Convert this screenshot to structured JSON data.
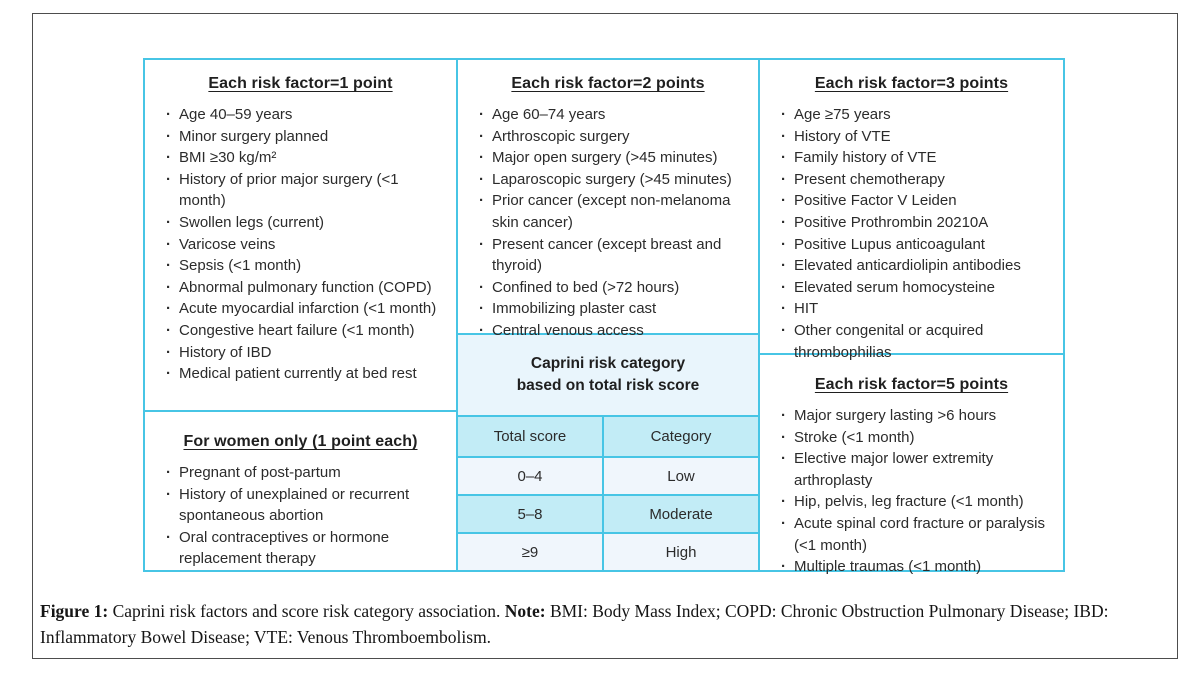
{
  "bullet": "·",
  "panel": {
    "one_point": {
      "title": "Each risk factor=1 point",
      "items": [
        "Age 40–59 years",
        "Minor surgery planned",
        "BMI ≥30 kg/m²",
        "History of prior major surgery (<1 month)",
        "Swollen legs (current)",
        "Varicose veins",
        "Sepsis (<1 month)",
        "Abnormal pulmonary function (COPD)",
        "Acute myocardial infarction (<1 month)",
        "Congestive heart failure (<1 month)",
        "History of IBD",
        "Medical patient currently at bed rest"
      ]
    },
    "women": {
      "title": "For women only (1 point each)",
      "items": [
        "Pregnant of post-partum",
        "History of unexplained or recurrent spontaneous abortion",
        "Oral contraceptives or hormone replacement therapy"
      ]
    },
    "two_points": {
      "title": "Each risk factor=2 points",
      "items": [
        "Age 60–74 years",
        "Arthroscopic surgery",
        "Major open surgery (>45 minutes)",
        "Laparoscopic surgery (>45 minutes)",
        "Prior cancer (except non-melanoma skin cancer)",
        "Present cancer (except breast and thyroid)",
        "Confined to bed (>72 hours)",
        "Immobilizing plaster cast",
        "Central venous access"
      ]
    },
    "three_points": {
      "title": "Each risk factor=3 points",
      "items": [
        "Age ≥75 years",
        "History of VTE",
        "Family history of VTE",
        "Present chemotherapy",
        "Positive Factor V Leiden",
        "Positive Prothrombin 20210A",
        "Positive Lupus anticoagulant",
        "Elevated anticardiolipin antibodies",
        "Elevated serum homocysteine",
        "HIT",
        "Other congenital or acquired thrombophilias"
      ]
    },
    "five_points": {
      "title": "Each risk factor=5 points",
      "items": [
        "Major surgery lasting >6 hours",
        "Stroke (<1 month)",
        "Elective major lower extremity arthroplasty",
        "Hip, pelvis, leg fracture (<1 month)",
        "Acute spinal cord fracture or paralysis (<1 month)",
        "Multiple traumas (<1 month)"
      ]
    },
    "category_header": {
      "line1": "Caprini risk category",
      "line2": "based on total risk score"
    },
    "score_table": {
      "col1_header": "Total score",
      "col2_header": "Category",
      "rows": [
        [
          "0–4",
          "Low"
        ],
        [
          "5–8",
          "Moderate"
        ],
        [
          "≥9",
          "High"
        ]
      ]
    }
  },
  "caption": {
    "figure_label": "Figure 1:",
    "description": " Caprini risk factors and score risk category association. ",
    "note_label": "Note:",
    "note_text": " BMI: Body Mass Index; COPD: Chronic Obstruction Pulmonary Disease; IBD: Inflammatory Bowel Disease; VTE: Venous Thromboembolism."
  },
  "colors": {
    "border_cyan": "#47c5e5",
    "frame_border": "#4d4d4d",
    "fill_light_blue": "#e9f5fc",
    "fill_medium_blue": "#c2ecf6",
    "fill_pale_row": "#f0f6fc"
  }
}
